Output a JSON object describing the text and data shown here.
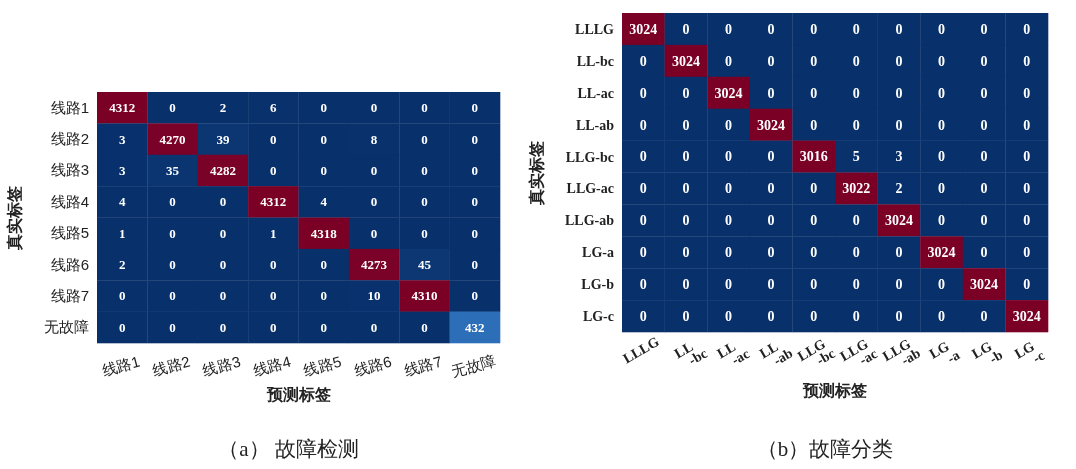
{
  "chart_data": [
    {
      "type": "heatmap",
      "title": "（a） 故障检测",
      "xlabel": "预测标签",
      "ylabel": "真实标签",
      "data_labels": true,
      "categories": [
        "线路1",
        "线路2",
        "线路3",
        "线路4",
        "线路5",
        "线路6",
        "线路7",
        "无故障"
      ],
      "y_categories": [
        "线路1",
        "线路2",
        "线路3",
        "线路4",
        "线路5",
        "线路6",
        "线路7",
        "无故障"
      ],
      "cells": [
        [
          4312,
          0,
          2,
          6,
          0,
          0,
          0,
          0
        ],
        [
          3,
          4270,
          39,
          0,
          0,
          8,
          0,
          0
        ],
        [
          3,
          35,
          4282,
          0,
          0,
          0,
          0,
          0
        ],
        [
          4,
          0,
          0,
          4312,
          4,
          0,
          0,
          0
        ],
        [
          1,
          0,
          0,
          1,
          4318,
          0,
          0,
          0
        ],
        [
          2,
          0,
          0,
          0,
          0,
          4273,
          45,
          0
        ],
        [
          0,
          0,
          0,
          0,
          0,
          10,
          4310,
          0
        ],
        [
          0,
          0,
          0,
          0,
          0,
          0,
          0,
          432
        ]
      ]
    },
    {
      "type": "heatmap",
      "title": "（b）故障分类",
      "xlabel": "预测标签",
      "ylabel": "真实标签",
      "data_labels": true,
      "categories": [
        "LLLG",
        "LL\n-bc",
        "LL\n-ac",
        "LL\n-ab",
        "LLG\n-bc",
        "LLG\n-ac",
        "LLG\n-ab",
        "LG\n-a",
        "LG\n-b",
        "LG\n-c"
      ],
      "y_categories": [
        "LLLG",
        "LL-bc",
        "LL-ac",
        "LL-ab",
        "LLG-bc",
        "LLG-ac",
        "LLG-ab",
        "LG-a",
        "LG-b",
        "LG-c"
      ],
      "cells": [
        [
          3024,
          0,
          0,
          0,
          0,
          0,
          0,
          0,
          0,
          0
        ],
        [
          0,
          3024,
          0,
          0,
          0,
          0,
          0,
          0,
          0,
          0
        ],
        [
          0,
          0,
          3024,
          0,
          0,
          0,
          0,
          0,
          0,
          0
        ],
        [
          0,
          0,
          0,
          3024,
          0,
          0,
          0,
          0,
          0,
          0
        ],
        [
          0,
          0,
          0,
          0,
          3016,
          5,
          3,
          0,
          0,
          0
        ],
        [
          0,
          0,
          0,
          0,
          0,
          3022,
          2,
          0,
          0,
          0
        ],
        [
          0,
          0,
          0,
          0,
          0,
          0,
          3024,
          0,
          0,
          0
        ],
        [
          0,
          0,
          0,
          0,
          0,
          0,
          0,
          3024,
          0,
          0
        ],
        [
          0,
          0,
          0,
          0,
          0,
          0,
          0,
          0,
          3024,
          0
        ],
        [
          0,
          0,
          0,
          0,
          0,
          0,
          0,
          0,
          0,
          3024
        ]
      ]
    }
  ]
}
